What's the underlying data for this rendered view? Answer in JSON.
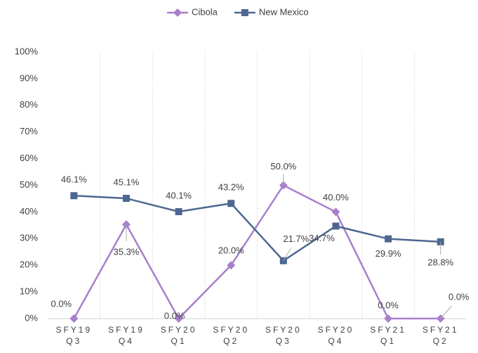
{
  "chart_data": {
    "type": "line",
    "categories": [
      "SFY19 Q3",
      "SFY19 Q4",
      "SFY20 Q1",
      "SFY20 Q2",
      "SFY20 Q3",
      "SFY20 Q4",
      "SFY21 Q1",
      "SFY21 Q2"
    ],
    "series": [
      {
        "name": "Cibola",
        "color": "#a97fcb",
        "marker": "diamond",
        "values": [
          0,
          35.3,
          0,
          20,
          50,
          40,
          0,
          0
        ],
        "value_labels": [
          "0.0%",
          "35.3%",
          "0.0%",
          "20.0%",
          "50.0%",
          "40.0%",
          "0.0%",
          "0.0%"
        ]
      },
      {
        "name": "New Mexico",
        "color": "#4d6791",
        "marker": "square",
        "values": [
          46.1,
          45.1,
          40.1,
          43.2,
          21.7,
          34.7,
          29.9,
          28.8
        ],
        "value_labels": [
          "46.1%",
          "45.1%",
          "40.1%",
          "43.2%",
          "21.7%",
          "34.7%",
          "29.9%",
          "28.8%"
        ]
      }
    ],
    "ylim": [
      0,
      100
    ],
    "yticks": [
      {
        "value": 0,
        "label": "0%"
      },
      {
        "value": 10,
        "label": "10%"
      },
      {
        "value": 20,
        "label": "20%"
      },
      {
        "value": 30,
        "label": "30%"
      },
      {
        "value": 40,
        "label": "40%"
      },
      {
        "value": 50,
        "label": "50%"
      },
      {
        "value": 60,
        "label": "60%"
      },
      {
        "value": 70,
        "label": "70%"
      },
      {
        "value": 80,
        "label": "80%"
      },
      {
        "value": 90,
        "label": "90%"
      },
      {
        "value": 100,
        "label": "100%"
      }
    ],
    "grid": "vertical",
    "legend": "top"
  }
}
